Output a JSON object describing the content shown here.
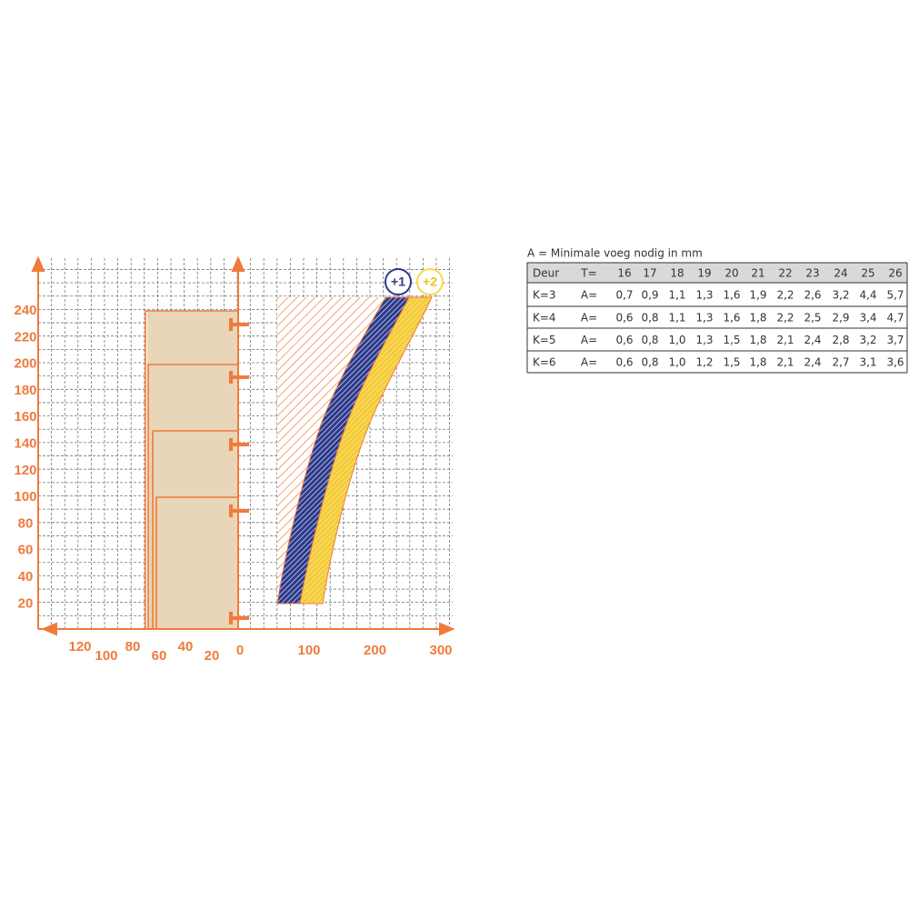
{
  "chart": {
    "y_labels": [
      240,
      220,
      200,
      180,
      160,
      140,
      120,
      100,
      80,
      60,
      40,
      20
    ],
    "x_left_labels": [
      120,
      100,
      80,
      60,
      40,
      20,
      0
    ],
    "x_right_labels": [
      100,
      200,
      300
    ],
    "badges": [
      "+1",
      "+2"
    ]
  },
  "table": {
    "title": "A = Minimale voeg nodig in mm",
    "header": [
      "Deur",
      "T=",
      "16",
      "17",
      "18",
      "19",
      "20",
      "21",
      "22",
      "23",
      "24",
      "25",
      "26"
    ],
    "rows": [
      [
        "K=3",
        "A=",
        "0,7",
        "0,9",
        "1,1",
        "1,3",
        "1,6",
        "1,9",
        "2,2",
        "2,6",
        "3,2",
        "4,4",
        "5,7"
      ],
      [
        "K=4",
        "A=",
        "0,6",
        "0,8",
        "1,1",
        "1,3",
        "1,6",
        "1,8",
        "2,2",
        "2,5",
        "2,9",
        "3,4",
        "4,7"
      ],
      [
        "K=5",
        "A=",
        "0,6",
        "0,8",
        "1,0",
        "1,3",
        "1,5",
        "1,8",
        "2,1",
        "2,4",
        "2,8",
        "3,2",
        "3,7"
      ],
      [
        "K=6",
        "A=",
        "0,6",
        "0,8",
        "1,0",
        "1,2",
        "1,5",
        "1,8",
        "2,1",
        "2,4",
        "2,7",
        "3,1",
        "3,6"
      ]
    ]
  }
}
